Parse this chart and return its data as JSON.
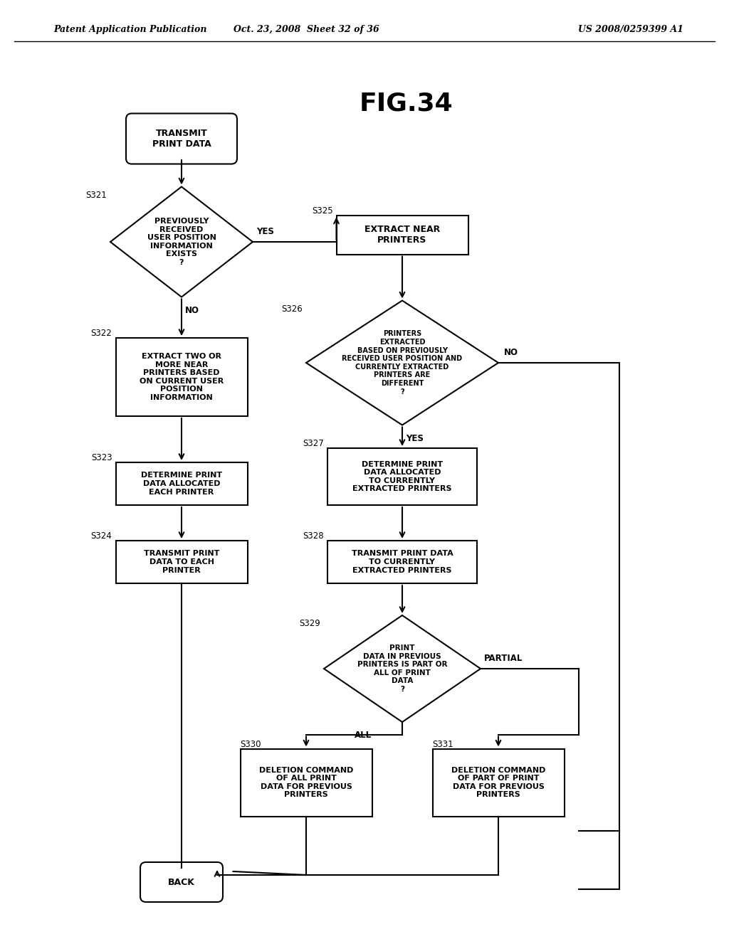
{
  "title": "FIG.34",
  "header_left": "Patent Application Publication",
  "header_mid": "Oct. 23, 2008  Sheet 32 of 36",
  "header_right": "US 2008/0259399 A1",
  "bg_color": "#ffffff"
}
